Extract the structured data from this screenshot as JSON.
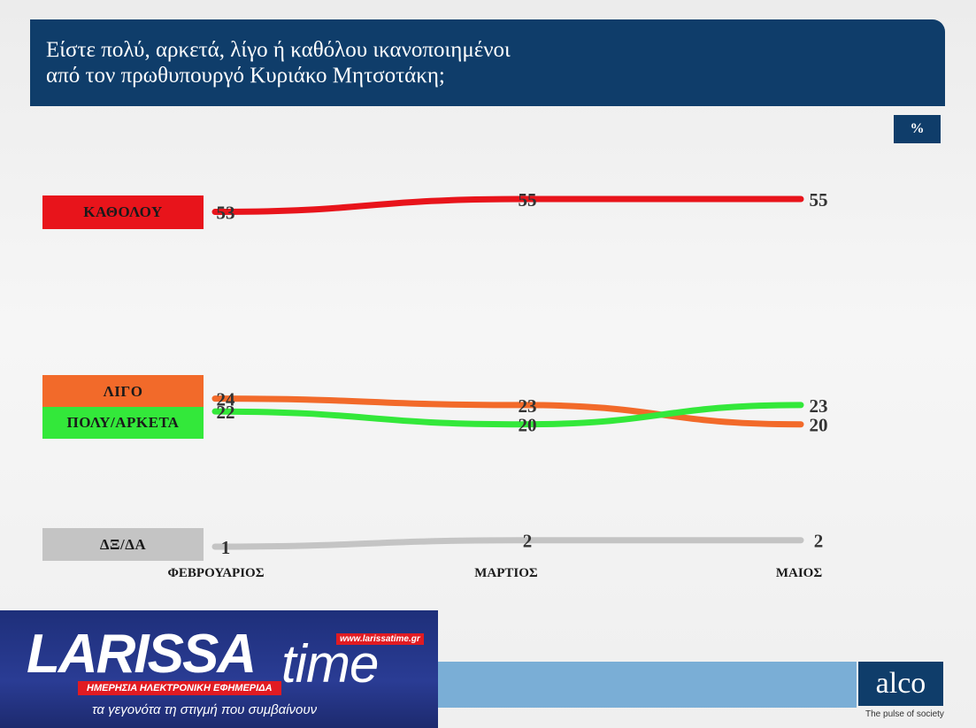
{
  "title_line1": "Είστε πολύ, αρκετά, λίγο ή καθόλου ικανοποιημένοι",
  "title_line2": "από τον πρωθυπουργό Κυριάκο Μητσοτάκη;",
  "unit_badge": "%",
  "chart_data": {
    "type": "line",
    "categories": [
      "ΦΕΒΡΟΥΑΡΙΟΣ",
      "ΜΑΡΤΙΟΣ",
      "ΜΑΙΟΣ"
    ],
    "ylim": [
      0,
      60
    ],
    "grid": false,
    "legend_placement": "left",
    "series": [
      {
        "name": "ΚΑΘΟΛΟΥ",
        "values": [
          53,
          55,
          55
        ],
        "color": "#e8141b"
      },
      {
        "name": "ΛΙΓΟ",
        "values": [
          24,
          23,
          20
        ],
        "color": "#f26a2a"
      },
      {
        "name": "ΠΟΛΥ/ΑΡΚΕΤΑ",
        "values": [
          22,
          20,
          23
        ],
        "color": "#33e83a"
      },
      {
        "name": "ΔΞ/ΔΑ",
        "values": [
          1,
          2,
          2
        ],
        "color": "#c4c4c4"
      }
    ]
  },
  "footer": {
    "brand_word": "LARISSA",
    "brand_time": "time",
    "brand_url": "www.larissatime.gr",
    "brand_sub": "ΗΜΕΡΗΣΙΑ ΗΛΕΚΤΡΟΝΙΚΗ ΕΦΗΜΕΡΙΔΑ",
    "brand_slogan": "τα γεγονότα τη στιγμή που συμβαίνουν",
    "alco": "alco",
    "alco_tagline": "The pulse of society"
  }
}
